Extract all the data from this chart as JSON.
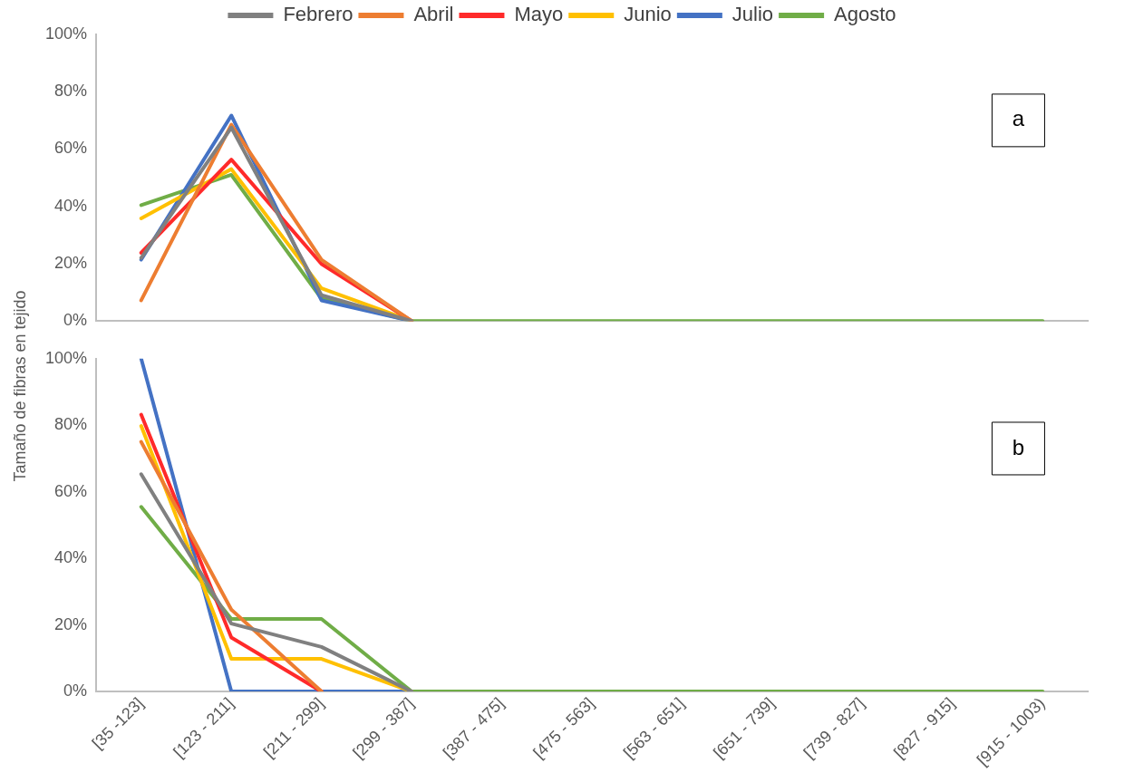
{
  "chart_data": [
    {
      "type": "line",
      "ylabel": "Tamaño de fibras en tejido",
      "categories": [
        null,
        null,
        null,
        null,
        null,
        null,
        null,
        null,
        null,
        null,
        null
      ],
      "series": [
        {
          "name": "Febrero",
          "color": "#808080",
          "values": [
            22,
            67.5,
            9,
            0,
            null,
            null,
            null,
            null,
            null,
            null,
            null
          ]
        },
        {
          "name": "Abril",
          "color": "#ed7d31",
          "values": [
            7.2,
            68.5,
            21.4,
            0,
            null,
            null,
            null,
            null,
            null,
            null,
            null
          ]
        },
        {
          "name": "Mayo",
          "color": "#ff2a2a",
          "values": [
            23.8,
            56.3,
            19.9,
            0,
            null,
            null,
            null,
            null,
            null,
            null,
            null
          ]
        },
        {
          "name": "Junio",
          "color": "#ffc000",
          "values": [
            35.8,
            53,
            11.4,
            0,
            null,
            null,
            null,
            null,
            null,
            null,
            null
          ]
        },
        {
          "name": "Julio",
          "color": "#4472c4",
          "values": [
            21.4,
            71.7,
            7.2,
            0,
            null,
            null,
            null,
            null,
            null,
            null,
            null
          ]
        },
        {
          "name": "Agosto",
          "color": "#70ad47",
          "values": [
            40.4,
            51,
            7.8,
            0,
            0,
            0,
            0,
            0,
            0,
            0,
            0
          ]
        }
      ],
      "ylim": [
        0,
        100
      ],
      "yticks": [
        {
          "value": 0,
          "label": "0%"
        },
        {
          "value": 20,
          "label": "20%"
        },
        {
          "value": 40,
          "label": "40%"
        },
        {
          "value": 60,
          "label": "60%"
        },
        {
          "value": 80,
          "label": "80%"
        },
        {
          "value": 100,
          "label": "100%"
        }
      ],
      "annotations": [
        "a"
      ],
      "legend": "top",
      "grid": false,
      "marker": "none",
      "tick_labels": "y"
    },
    {
      "type": "line",
      "categories": [
        "[35 -123]",
        "[123 - 211]",
        "[211 - 299]",
        "[299 - 387]",
        "[387 - 475]",
        "[475 - 563]",
        "[563 - 651]",
        "[651 - 739]",
        "[739 - 827]",
        "[827 - 915]",
        "[915 - 1003)"
      ],
      "series": [
        {
          "color": "#808080",
          "values": [
            65.3,
            20.4,
            13.4,
            0,
            null,
            null,
            null,
            null,
            null,
            null,
            null
          ]
        },
        {
          "color": "#ed7d31",
          "values": [
            75,
            24.6,
            0,
            null,
            null,
            null,
            null,
            null,
            null,
            null,
            null
          ]
        },
        {
          "color": "#ff2a2a",
          "values": [
            83.2,
            16.2,
            0,
            null,
            null,
            null,
            null,
            null,
            null,
            null,
            null
          ]
        },
        {
          "color": "#ffc000",
          "values": [
            79.8,
            9.8,
            9.8,
            0,
            null,
            null,
            null,
            null,
            null,
            null,
            null
          ]
        },
        {
          "color": "#4472c4",
          "values": [
            100,
            0,
            0,
            0,
            null,
            null,
            null,
            null,
            null,
            null,
            null
          ]
        },
        {
          "color": "#70ad47",
          "values": [
            55.5,
            21.8,
            21.8,
            0,
            0,
            0,
            0,
            0,
            0,
            0,
            0
          ]
        }
      ],
      "ylim": [
        0,
        100
      ],
      "yticks": [
        {
          "value": 0,
          "label": "0%"
        },
        {
          "value": 20,
          "label": "20%"
        },
        {
          "value": 40,
          "label": "40%"
        },
        {
          "value": 60,
          "label": "60%"
        },
        {
          "value": 80,
          "label": "80%"
        },
        {
          "value": 100,
          "label": "100%"
        }
      ],
      "annotations": [
        "b"
      ],
      "grid": false,
      "marker": "none"
    }
  ]
}
